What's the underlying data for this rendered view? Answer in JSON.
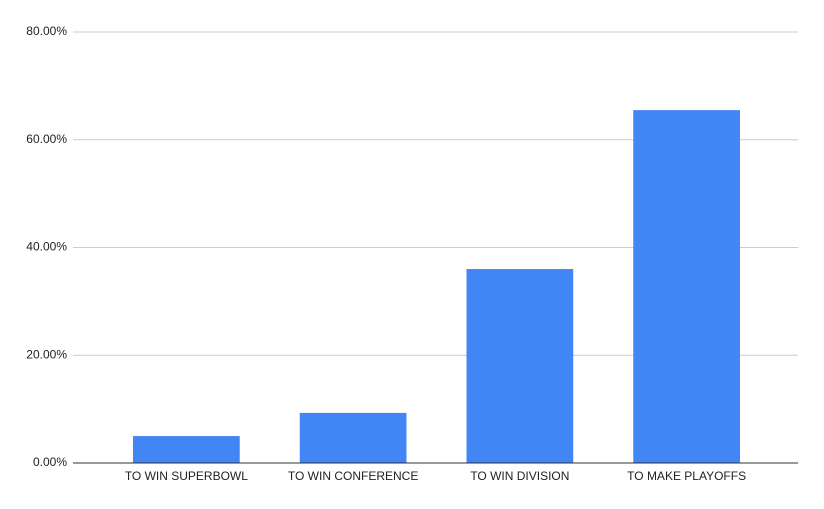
{
  "chart_data": {
    "type": "bar",
    "categories": [
      "TO WIN SUPERBOWL",
      "TO WIN CONFERENCE",
      "TO WIN DIVISION",
      "TO MAKE PLAYOFFS"
    ],
    "values": [
      5.0,
      9.3,
      36.0,
      65.5
    ],
    "color": "#4285f4",
    "ylim": [
      0,
      80
    ],
    "yticks": [
      {
        "value": 0,
        "label": "0.00%"
      },
      {
        "value": 20,
        "label": "20.00%"
      },
      {
        "value": 40,
        "label": "40.00%"
      },
      {
        "value": 60,
        "label": "60.00%"
      },
      {
        "value": 80,
        "label": "80.00%"
      }
    ],
    "grid": true
  }
}
